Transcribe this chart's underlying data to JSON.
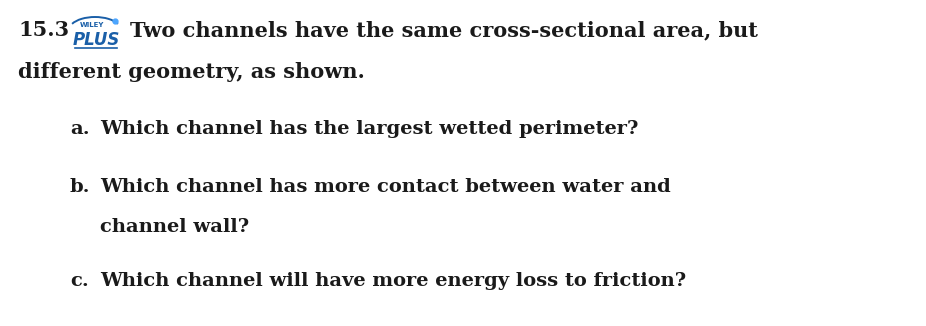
{
  "bg_color": "#ffffff",
  "text_color": "#1a1a1a",
  "problem_number": "15.3",
  "wiley_text": "WILEY",
  "plus_text": "PLUS",
  "wiley_color": "#1a5fa8",
  "dot_color": "#4da6ff",
  "intro_line1": "Two channels have the same cross-sectional area, but",
  "intro_line2": "different geometry, as shown.",
  "item_a_label": "a.",
  "item_a_text": "Which channel has the largest wetted perimeter?",
  "item_b_label": "b.",
  "item_b_text1": "Which channel has more contact between water and",
  "item_b_text2": "channel wall?",
  "item_c_label": "c.",
  "item_c_text": "Which channel will have more energy loss to friction?",
  "fontsize_main": 15,
  "fontsize_items": 14,
  "fontsize_small": 6
}
